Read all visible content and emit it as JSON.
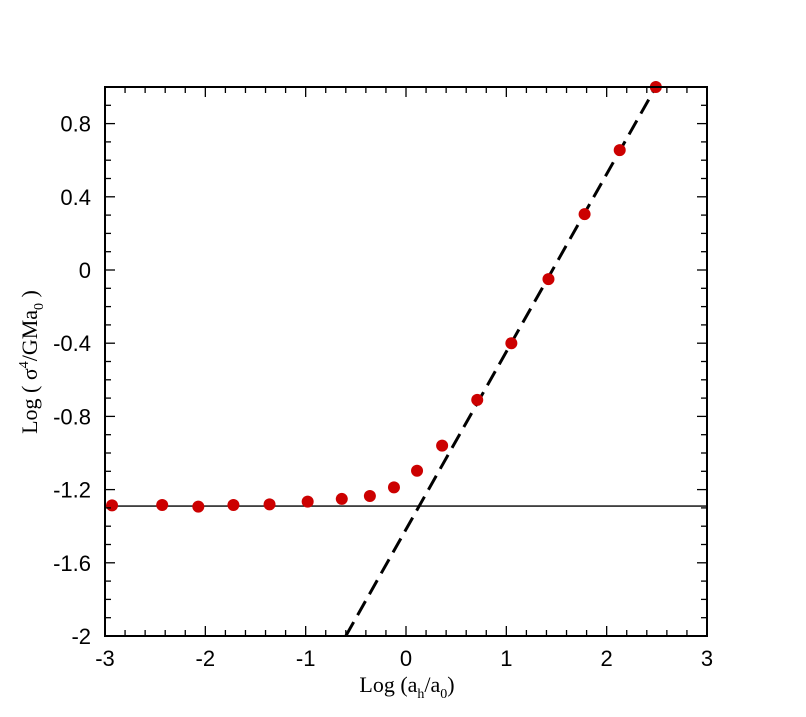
{
  "chart_data": {
    "type": "scatter",
    "title": "",
    "xlabel": {
      "prefix": "Log (a",
      "sub1": "h",
      "mid": "/a",
      "sub2": "0",
      "suffix": ")"
    },
    "ylabel": {
      "prefix": "Log ( σ",
      "sup": "4",
      "mid": "/GMa",
      "sub": "0",
      "suffix": " )"
    },
    "xlim": [
      -3,
      3
    ],
    "ylim": [
      -2,
      1
    ],
    "x_ticks": [
      -3,
      -2,
      -1,
      0,
      1,
      2,
      3
    ],
    "x_tick_labels": [
      "-3",
      "-2",
      "-1",
      "0",
      "1",
      "2",
      "3"
    ],
    "y_ticks": [
      -2,
      -1.6,
      -1.2,
      -0.8,
      -0.4,
      0,
      0.4,
      0.8
    ],
    "y_tick_labels": [
      "-2",
      "-1.6",
      "-1.2",
      "-0.8",
      "-0.4",
      "0",
      "0.4",
      "0.8"
    ],
    "grid": false,
    "marker_color": "#cc0000",
    "series": [
      {
        "x": [
          -2.93,
          -2.43,
          -2.07,
          -1.72,
          -1.36,
          -0.98,
          -0.64,
          -0.36,
          -0.12,
          0.11,
          0.36,
          0.71,
          1.05,
          1.42,
          1.78,
          2.13,
          2.49
        ],
        "y": [
          -1.286,
          -1.284,
          -1.293,
          -1.284,
          -1.281,
          -1.266,
          -1.251,
          -1.235,
          -1.188,
          -1.097,
          -0.96,
          -0.71,
          -0.4,
          -0.05,
          0.305,
          0.655,
          1.0
        ]
      }
    ],
    "reference_lines": [
      {
        "style": "solid",
        "x": [
          -3,
          3
        ],
        "y": [
          -1.29,
          -1.29
        ]
      },
      {
        "style": "dashed",
        "x": [
          -0.6,
          2.49
        ],
        "y": [
          -2.0,
          1.0
        ]
      }
    ]
  }
}
